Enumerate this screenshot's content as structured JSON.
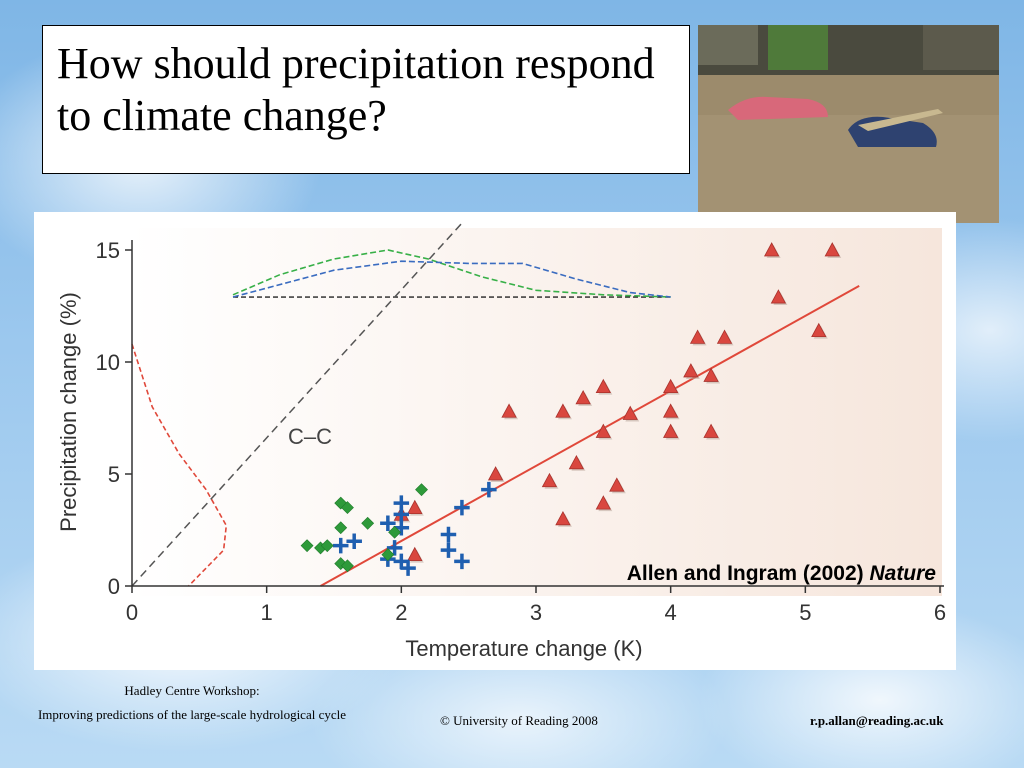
{
  "slide": {
    "title": "How should precipitation respond to climate change?",
    "photo_icon": "flood-photo"
  },
  "citation": {
    "authors": "Allen and Ingram (2002)",
    "journal": "Nature"
  },
  "footer": {
    "workshop_line1": "Hadley Centre Workshop:",
    "workshop_line2": "Improving predictions of the large-scale hydrological cycle",
    "copyright": "© University of Reading 2008",
    "email": "r.p.allan@reading.ac.uk"
  },
  "chart_data": {
    "type": "scatter",
    "xlabel": "Temperature change (K)",
    "ylabel": "Precipitation change (%)",
    "xlim": [
      0,
      6
    ],
    "ylim": [
      0,
      15
    ],
    "xticks": [
      0,
      1,
      2,
      3,
      4,
      5,
      6
    ],
    "yticks": [
      0,
      5,
      10,
      15
    ],
    "annotations": [
      {
        "text": "C–C",
        "x": 1.15,
        "y": 6.5
      }
    ],
    "colors": {
      "triangles": "#d9473f",
      "crosses": "#1f5fb0",
      "diamonds": "#2e9a3a",
      "fit_line": "#e0483a",
      "cc_line": "#555555",
      "green_dist": "#38b048",
      "blue_dist": "#3a6cc0",
      "red_dist": "#e0483a"
    },
    "series": [
      {
        "marker": "triangle",
        "points": [
          [
            4.75,
            15.0
          ],
          [
            5.2,
            15.0
          ],
          [
            4.8,
            12.9
          ],
          [
            5.1,
            11.4
          ],
          [
            4.2,
            11.1
          ],
          [
            4.4,
            11.1
          ],
          [
            4.15,
            9.6
          ],
          [
            4.3,
            9.4
          ],
          [
            4.0,
            8.9
          ],
          [
            3.5,
            8.9
          ],
          [
            3.35,
            8.4
          ],
          [
            3.2,
            7.8
          ],
          [
            2.8,
            7.8
          ],
          [
            3.7,
            7.7
          ],
          [
            4.0,
            7.8
          ],
          [
            3.5,
            6.9
          ],
          [
            4.0,
            6.9
          ],
          [
            4.3,
            6.9
          ],
          [
            3.3,
            5.5
          ],
          [
            2.7,
            5.0
          ],
          [
            3.1,
            4.7
          ],
          [
            3.6,
            4.5
          ],
          [
            3.5,
            3.7
          ],
          [
            3.2,
            3.0
          ],
          [
            2.1,
            3.5
          ],
          [
            2.0,
            3.2
          ],
          [
            2.1,
            1.4
          ]
        ]
      },
      {
        "marker": "cross",
        "points": [
          [
            2.65,
            4.3
          ],
          [
            2.45,
            3.5
          ],
          [
            2.0,
            3.7
          ],
          [
            2.0,
            3.2
          ],
          [
            1.9,
            2.8
          ],
          [
            2.35,
            2.3
          ],
          [
            2.0,
            2.6
          ],
          [
            1.65,
            2.0
          ],
          [
            1.55,
            1.8
          ],
          [
            1.95,
            1.7
          ],
          [
            2.35,
            1.6
          ],
          [
            2.45,
            1.1
          ],
          [
            1.9,
            1.2
          ],
          [
            2.0,
            1.1
          ],
          [
            2.05,
            0.8
          ]
        ]
      },
      {
        "marker": "diamond",
        "points": [
          [
            2.15,
            4.3
          ],
          [
            1.55,
            3.7
          ],
          [
            1.6,
            3.5
          ],
          [
            1.75,
            2.8
          ],
          [
            1.55,
            2.6
          ],
          [
            1.95,
            2.4
          ],
          [
            1.3,
            1.8
          ],
          [
            1.4,
            1.7
          ],
          [
            1.45,
            1.8
          ],
          [
            1.9,
            1.4
          ],
          [
            1.55,
            1.0
          ],
          [
            1.6,
            0.9
          ]
        ]
      }
    ],
    "fit_line": [
      [
        1.4,
        0.0
      ],
      [
        5.4,
        13.4
      ]
    ],
    "cc_line": [
      [
        0.0,
        0.0
      ],
      [
        2.45,
        16.2
      ]
    ],
    "green_dist": {
      "baseline": 12.9,
      "x": [
        0.75,
        1.1,
        1.5,
        1.9,
        2.2,
        2.6,
        3.0,
        3.5,
        4.0
      ],
      "y": [
        13.0,
        13.9,
        14.6,
        15.0,
        14.6,
        13.8,
        13.2,
        13.0,
        12.9
      ]
    },
    "blue_dist": {
      "baseline": 12.9,
      "x": [
        0.75,
        1.0,
        1.5,
        2.0,
        2.5,
        2.9,
        3.3,
        3.7,
        4.0
      ],
      "y": [
        12.9,
        13.3,
        14.1,
        14.5,
        14.4,
        14.4,
        13.7,
        13.1,
        12.9
      ]
    },
    "red_dist": {
      "x": [
        0.0,
        0.15,
        0.35,
        0.55,
        0.7,
        0.68,
        0.55,
        0.42
      ],
      "y": [
        10.8,
        8.0,
        5.9,
        4.3,
        2.7,
        1.6,
        0.8,
        0.0
      ]
    }
  }
}
